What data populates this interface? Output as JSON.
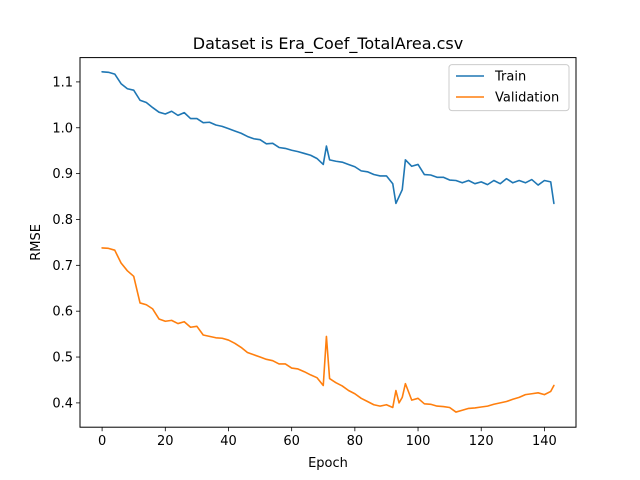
{
  "chart_data": {
    "type": "line",
    "title": "Dataset is Era_Coef_TotalArea.csv",
    "xlabel": "Epoch",
    "ylabel": "RMSE",
    "xlim": [
      -7,
      150
    ],
    "ylim": [
      0.347,
      1.153
    ],
    "xticks": [
      0,
      20,
      40,
      60,
      80,
      100,
      120,
      140
    ],
    "yticks": [
      0.4,
      0.5,
      0.6,
      0.7,
      0.8,
      0.9,
      1.0,
      1.1
    ],
    "grid": false,
    "legend_position": "top-right",
    "series": [
      {
        "name": "Train",
        "color": "#1f77b4",
        "x": [
          0,
          2,
          4,
          6,
          8,
          10,
          12,
          14,
          16,
          18,
          20,
          22,
          24,
          26,
          28,
          30,
          32,
          34,
          36,
          38,
          40,
          42,
          44,
          46,
          48,
          50,
          52,
          54,
          56,
          58,
          60,
          62,
          64,
          66,
          68,
          70,
          71,
          72,
          74,
          76,
          78,
          80,
          82,
          84,
          86,
          88,
          90,
          92,
          93,
          94,
          95,
          96,
          98,
          100,
          102,
          104,
          106,
          108,
          110,
          112,
          114,
          116,
          118,
          120,
          122,
          124,
          126,
          128,
          130,
          132,
          134,
          136,
          138,
          140,
          142,
          143
        ],
        "values": [
          1.122,
          1.121,
          1.117,
          1.096,
          1.085,
          1.082,
          1.06,
          1.055,
          1.044,
          1.034,
          1.03,
          1.036,
          1.027,
          1.033,
          1.02,
          1.02,
          1.011,
          1.012,
          1.006,
          1.003,
          0.998,
          0.993,
          0.988,
          0.981,
          0.976,
          0.974,
          0.965,
          0.966,
          0.957,
          0.955,
          0.951,
          0.948,
          0.944,
          0.94,
          0.933,
          0.92,
          0.96,
          0.93,
          0.927,
          0.925,
          0.92,
          0.915,
          0.906,
          0.904,
          0.898,
          0.895,
          0.895,
          0.878,
          0.835,
          0.85,
          0.865,
          0.93,
          0.916,
          0.92,
          0.898,
          0.897,
          0.892,
          0.892,
          0.886,
          0.885,
          0.88,
          0.885,
          0.878,
          0.882,
          0.876,
          0.885,
          0.878,
          0.889,
          0.88,
          0.885,
          0.88,
          0.887,
          0.875,
          0.885,
          0.882,
          0.835
        ]
      },
      {
        "name": "Validation",
        "color": "#ff7f0e",
        "x": [
          0,
          2,
          4,
          6,
          8,
          10,
          12,
          14,
          16,
          18,
          20,
          22,
          24,
          26,
          28,
          30,
          32,
          34,
          36,
          38,
          40,
          42,
          44,
          46,
          48,
          50,
          52,
          54,
          56,
          58,
          60,
          62,
          64,
          66,
          68,
          70,
          71,
          72,
          74,
          76,
          78,
          80,
          82,
          84,
          86,
          88,
          90,
          92,
          93,
          94,
          95,
          96,
          98,
          100,
          102,
          104,
          106,
          108,
          110,
          112,
          114,
          116,
          118,
          120,
          122,
          124,
          126,
          128,
          130,
          132,
          134,
          136,
          138,
          140,
          142,
          143
        ],
        "values": [
          0.738,
          0.737,
          0.733,
          0.705,
          0.688,
          0.676,
          0.618,
          0.614,
          0.605,
          0.583,
          0.578,
          0.58,
          0.573,
          0.577,
          0.565,
          0.567,
          0.548,
          0.545,
          0.542,
          0.541,
          0.537,
          0.53,
          0.521,
          0.51,
          0.505,
          0.5,
          0.495,
          0.492,
          0.485,
          0.485,
          0.476,
          0.474,
          0.468,
          0.461,
          0.455,
          0.438,
          0.545,
          0.453,
          0.444,
          0.437,
          0.427,
          0.42,
          0.41,
          0.403,
          0.396,
          0.393,
          0.396,
          0.39,
          0.427,
          0.4,
          0.412,
          0.442,
          0.406,
          0.41,
          0.398,
          0.397,
          0.393,
          0.392,
          0.39,
          0.38,
          0.384,
          0.388,
          0.389,
          0.391,
          0.393,
          0.397,
          0.4,
          0.403,
          0.408,
          0.412,
          0.418,
          0.42,
          0.422,
          0.418,
          0.425,
          0.438
        ]
      }
    ]
  }
}
